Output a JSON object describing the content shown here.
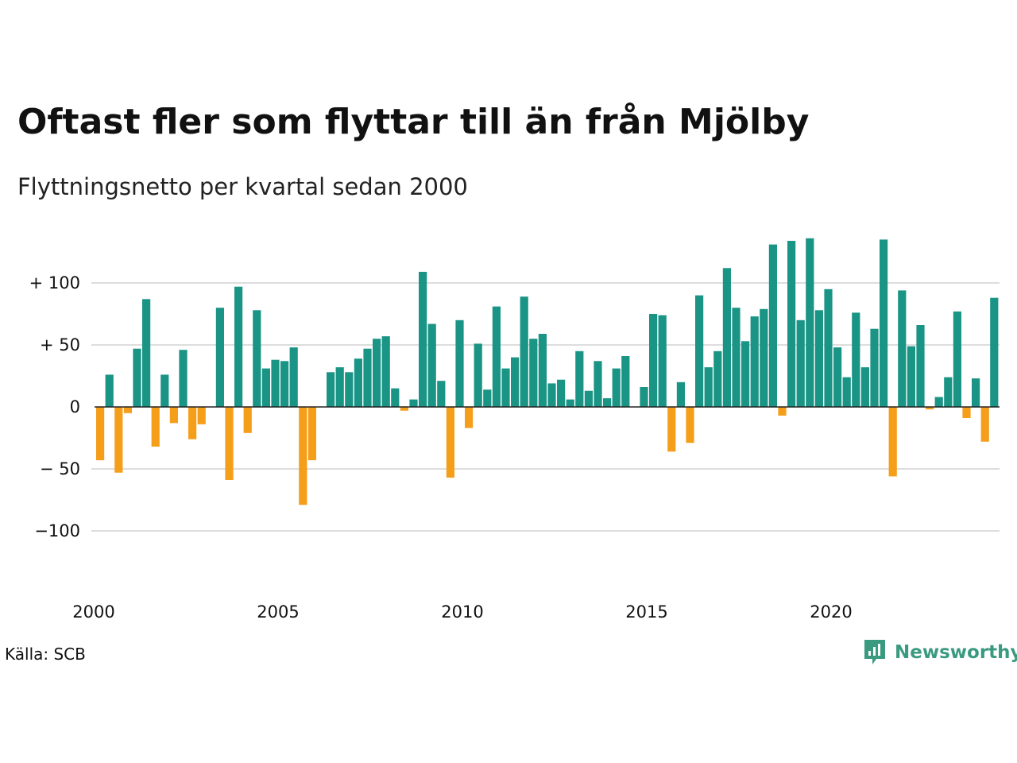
{
  "chart_data": {
    "type": "bar",
    "title": "Oftast fler som flyttar till än från Mjölby",
    "subtitle": "Flyttningsnetto per kvartal sedan 2000",
    "x_start_year": 2000,
    "quarters_per_year": 4,
    "values": [
      -43,
      26,
      -53,
      -5,
      47,
      87,
      -32,
      26,
      -13,
      46,
      -26,
      -14,
      0,
      80,
      -59,
      97,
      -21,
      78,
      31,
      38,
      37,
      48,
      -79,
      -43,
      0,
      28,
      32,
      28,
      39,
      47,
      55,
      57,
      15,
      -3,
      6,
      109,
      67,
      21,
      -57,
      70,
      -17,
      51,
      14,
      81,
      31,
      40,
      89,
      55,
      59,
      19,
      22,
      6,
      45,
      13,
      37,
      7,
      31,
      41,
      0,
      16,
      75,
      74,
      -36,
      20,
      -29,
      90,
      32,
      45,
      112,
      80,
      53,
      73,
      79,
      131,
      -7,
      134,
      70,
      136,
      78,
      95,
      48,
      24,
      76,
      32,
      63,
      135,
      -56,
      94,
      49,
      66,
      -2,
      8,
      24,
      77,
      -9,
      23,
      -28,
      88
    ],
    "y_ticks": [
      100,
      50,
      0,
      -50,
      -100
    ],
    "y_tick_labels": [
      "+ 100",
      "+  50",
      "0",
      "− 50",
      "−100"
    ],
    "ylim": [
      -125,
      140
    ],
    "x_tick_labels": [
      "2000",
      "2005",
      "2010",
      "2015",
      "2020"
    ],
    "grid": true,
    "positive_color": "#1a9485",
    "negative_color": "#f59e1a",
    "grid_color": "#dddddd",
    "baseline_color": "#222222"
  },
  "footer": {
    "source": "Källa: SCB",
    "brand": "Newsworthy",
    "brand_icon": "newsworthy-logo-icon",
    "brand_color": "#3a9a80"
  }
}
